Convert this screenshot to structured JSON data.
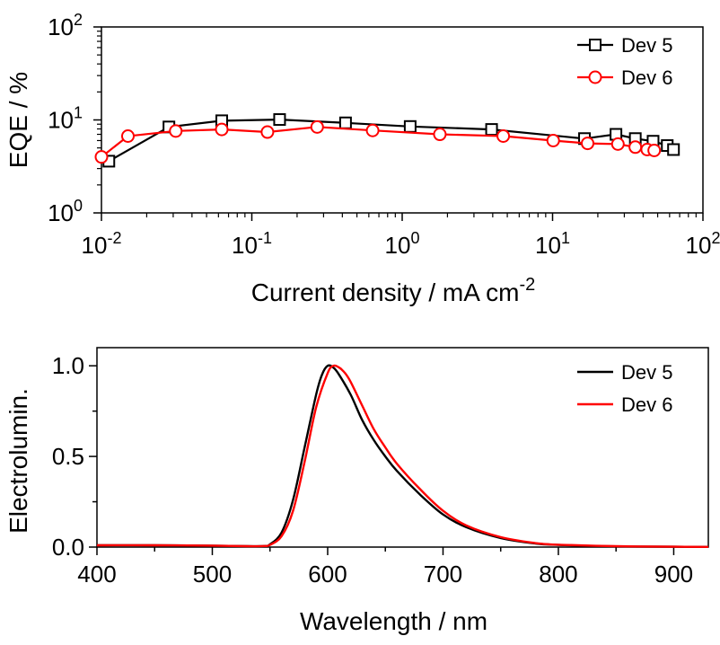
{
  "chart_data": [
    {
      "type": "line",
      "xlabel": "Current density / mA cm",
      "xlabel_superscript": "-2",
      "ylabel": "EQE / %",
      "xscale": "log",
      "yscale": "log",
      "xlim": [
        0.01,
        100
      ],
      "ylim": [
        1,
        100
      ],
      "xticks": [
        {
          "base": "10",
          "exp": "-2"
        },
        {
          "base": "10",
          "exp": "-1"
        },
        {
          "base": "10",
          "exp": "0"
        },
        {
          "base": "10",
          "exp": "1"
        },
        {
          "base": "10",
          "exp": "2"
        }
      ],
      "yticks": [
        {
          "base": "10",
          "exp": "0"
        },
        {
          "base": "10",
          "exp": "1"
        },
        {
          "base": "10",
          "exp": "2"
        }
      ],
      "grid": false,
      "legend_position": "top-right",
      "series": [
        {
          "name": "Dev 5",
          "color": "#000000",
          "marker": "square",
          "x": [
            0.0112,
            0.0281,
            0.0631,
            0.153,
            0.42,
            1.13,
            3.93,
            16.3,
            26.4,
            35.5,
            46.6,
            57.9,
            63.7
          ],
          "y": [
            3.6,
            8.4,
            9.8,
            10.1,
            9.3,
            8.5,
            7.9,
            6.3,
            7.0,
            6.3,
            5.9,
            5.3,
            4.8
          ]
        },
        {
          "name": "Dev 6",
          "color": "#ff0000",
          "marker": "circle",
          "x": [
            0.01,
            0.015,
            0.0312,
            0.0631,
            0.127,
            0.272,
            0.636,
            1.78,
            4.7,
            10.1,
            17.1,
            27.2,
            35.5,
            42.6,
            47.4
          ],
          "y": [
            4.0,
            6.7,
            7.6,
            7.9,
            7.4,
            8.4,
            7.7,
            7.0,
            6.7,
            6.0,
            5.6,
            5.5,
            5.1,
            4.8,
            4.7
          ]
        }
      ]
    },
    {
      "type": "line",
      "xlabel": "Wavelength / nm",
      "ylabel": "Electrolumin.",
      "xlim": [
        400,
        930
      ],
      "ylim": [
        0,
        1.1
      ],
      "xticks": [
        "400",
        "500",
        "600",
        "700",
        "800",
        "900"
      ],
      "yticks": [
        "0.0",
        "0.5",
        "1.0"
      ],
      "grid": false,
      "legend_position": "top-right",
      "series": [
        {
          "name": "Dev 5",
          "color": "#000000",
          "x": [
            400,
            450,
            500,
            530,
            545,
            550,
            560,
            570,
            580,
            590,
            595,
            600,
            605,
            610,
            620,
            630,
            640,
            650,
            660,
            680,
            700,
            720,
            750,
            780,
            800,
            850,
            900,
            930
          ],
          "y": [
            0.01,
            0.01,
            0.008,
            0.005,
            0.006,
            0.015,
            0.08,
            0.26,
            0.55,
            0.84,
            0.95,
            1.0,
            0.99,
            0.95,
            0.84,
            0.7,
            0.59,
            0.5,
            0.42,
            0.29,
            0.18,
            0.11,
            0.05,
            0.02,
            0.012,
            0.004,
            0.002,
            0.001
          ]
        },
        {
          "name": "Dev 6",
          "color": "#ff0000",
          "x": [
            400,
            450,
            500,
            530,
            545,
            550,
            560,
            570,
            580,
            590,
            600,
            605,
            610,
            615,
            620,
            630,
            640,
            650,
            660,
            680,
            700,
            720,
            750,
            780,
            800,
            850,
            900,
            930
          ],
          "y": [
            0.01,
            0.01,
            0.008,
            0.005,
            0.006,
            0.012,
            0.06,
            0.2,
            0.47,
            0.77,
            0.96,
            1.0,
            0.99,
            0.96,
            0.91,
            0.78,
            0.65,
            0.55,
            0.46,
            0.32,
            0.2,
            0.12,
            0.055,
            0.022,
            0.013,
            0.005,
            0.002,
            0.001
          ]
        }
      ]
    }
  ]
}
